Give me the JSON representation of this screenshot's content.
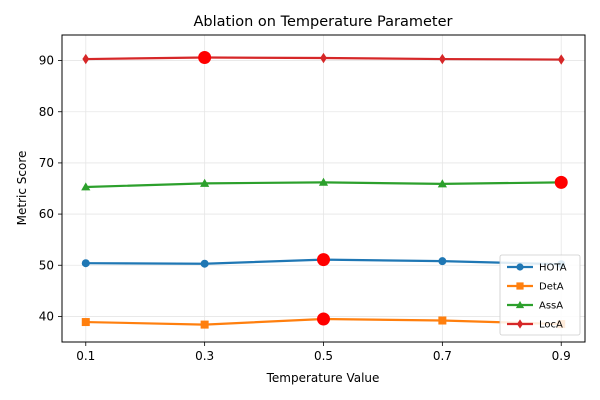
{
  "chart_data": {
    "type": "line",
    "title": "Ablation on Temperature Parameter",
    "xlabel": "Temperature Value",
    "ylabel": "Metric Score",
    "x": [
      0.1,
      0.3,
      0.5,
      0.7,
      0.9
    ],
    "x_tick_labels": [
      "0.1",
      "0.3",
      "0.5",
      "0.7",
      "0.9"
    ],
    "xlim": [
      0.06,
      0.94
    ],
    "ylim": [
      35,
      95
    ],
    "y_ticks": [
      40,
      50,
      60,
      70,
      80,
      90
    ],
    "grid": true,
    "legend_position": "lower-right",
    "series": [
      {
        "name": "HOTA",
        "values": [
          50.4,
          50.3,
          51.1,
          50.8,
          50.2
        ],
        "color": "#1f77b4",
        "marker": "circle",
        "best_index": 2
      },
      {
        "name": "DetA",
        "values": [
          38.9,
          38.4,
          39.5,
          39.2,
          38.5
        ],
        "color": "#ff7f0e",
        "marker": "square",
        "best_index": 2
      },
      {
        "name": "AssA",
        "values": [
          65.3,
          66.0,
          66.2,
          65.9,
          66.2
        ],
        "color": "#2ca02c",
        "marker": "triangle",
        "best_index": 4
      },
      {
        "name": "LocA",
        "values": [
          90.3,
          90.6,
          90.5,
          90.3,
          90.2
        ],
        "color": "#d62728",
        "marker": "diamond",
        "best_index": 1
      }
    ],
    "highlight_color": "#ff0000"
  }
}
